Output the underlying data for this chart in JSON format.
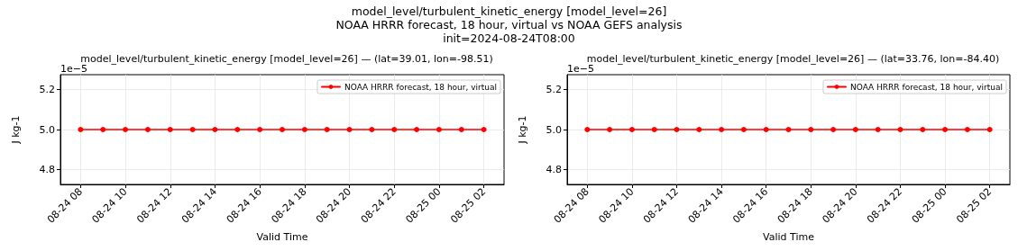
{
  "chart_data": [
    {
      "type": "line",
      "title": "model_level/turbulent_kinetic_energy [model_level=26] — (lat=39.01, lon=-98.51)",
      "xlabel": "Valid Time",
      "ylabel": "J kg-1",
      "annotations": [
        "model_level/turbulent_kinetic_energy [model_level=26]\nNOAA HRRR forecast, 18 hour, virtual vs NOAA GEFS analysis\ninit=2024-08-24T08:00",
        "1e−5"
      ],
      "x": [
        "2024-08-24T08:00",
        "2024-08-24T09:00",
        "2024-08-24T10:00",
        "2024-08-24T11:00",
        "2024-08-24T12:00",
        "2024-08-24T13:00",
        "2024-08-24T14:00",
        "2024-08-24T15:00",
        "2024-08-24T16:00",
        "2024-08-24T17:00",
        "2024-08-24T18:00",
        "2024-08-24T19:00",
        "2024-08-24T20:00",
        "2024-08-24T21:00",
        "2024-08-24T22:00",
        "2024-08-24T23:00",
        "2024-08-25T00:00",
        "2024-08-25T01:00",
        "2024-08-25T02:00"
      ],
      "series": [
        {
          "name": "NOAA HRRR forecast, 18 hour, virtual",
          "color": "#ff0000",
          "values": [
            5.0,
            5.0,
            5.0,
            5.0,
            5.0,
            5.0,
            5.0,
            5.0,
            5.0,
            5.0,
            5.0,
            5.0,
            5.0,
            5.0,
            5.0,
            5.0,
            5.0,
            5.0,
            5.0
          ]
        }
      ],
      "xlim": [
        "2024-08-24T07:06",
        "2024-08-25T02:54"
      ],
      "xticks": [
        {
          "value": "2024-08-24T08:00",
          "label": "08-24 08"
        },
        {
          "value": "2024-08-24T10:00",
          "label": "08-24 10"
        },
        {
          "value": "2024-08-24T12:00",
          "label": "08-24 12"
        },
        {
          "value": "2024-08-24T14:00",
          "label": "08-24 14"
        },
        {
          "value": "2024-08-24T16:00",
          "label": "08-24 16"
        },
        {
          "value": "2024-08-24T18:00",
          "label": "08-24 18"
        },
        {
          "value": "2024-08-24T20:00",
          "label": "08-24 20"
        },
        {
          "value": "2024-08-24T22:00",
          "label": "08-24 22"
        },
        {
          "value": "2024-08-25T00:00",
          "label": "08-25 00"
        },
        {
          "value": "2024-08-25T02:00",
          "label": "08-25 02"
        }
      ],
      "ylim": [
        4.725,
        5.275
      ],
      "yticks": [
        {
          "value": 4.8,
          "label": "4.8"
        },
        {
          "value": 5.0,
          "label": "5.0"
        },
        {
          "value": 5.2,
          "label": "5.2"
        }
      ],
      "grid": true,
      "legend": "top right",
      "marker": "circle",
      "line_style": "solid"
    },
    {
      "type": "line",
      "title": "model_level/turbulent_kinetic_energy [model_level=26] — (lat=33.76, lon=-84.40)",
      "xlabel": "Valid Time",
      "ylabel": "J kg-1",
      "annotations": [
        "1e−5"
      ],
      "x": [
        "2024-08-24T08:00",
        "2024-08-24T09:00",
        "2024-08-24T10:00",
        "2024-08-24T11:00",
        "2024-08-24T12:00",
        "2024-08-24T13:00",
        "2024-08-24T14:00",
        "2024-08-24T15:00",
        "2024-08-24T16:00",
        "2024-08-24T17:00",
        "2024-08-24T18:00",
        "2024-08-24T19:00",
        "2024-08-24T20:00",
        "2024-08-24T21:00",
        "2024-08-24T22:00",
        "2024-08-24T23:00",
        "2024-08-25T00:00",
        "2024-08-25T01:00",
        "2024-08-25T02:00"
      ],
      "series": [
        {
          "name": "NOAA HRRR forecast, 18 hour, virtual",
          "color": "#ff0000",
          "values": [
            5.0,
            5.0,
            5.0,
            5.0,
            5.0,
            5.0,
            5.0,
            5.0,
            5.0,
            5.0,
            5.0,
            5.0,
            5.0,
            5.0,
            5.0,
            5.0,
            5.0,
            5.0,
            5.0
          ]
        }
      ],
      "xlim": [
        "2024-08-24T07:06",
        "2024-08-25T02:54"
      ],
      "xticks": [
        {
          "value": "2024-08-24T08:00",
          "label": "08-24 08"
        },
        {
          "value": "2024-08-24T10:00",
          "label": "08-24 10"
        },
        {
          "value": "2024-08-24T12:00",
          "label": "08-24 12"
        },
        {
          "value": "2024-08-24T14:00",
          "label": "08-24 14"
        },
        {
          "value": "2024-08-24T16:00",
          "label": "08-24 16"
        },
        {
          "value": "2024-08-24T18:00",
          "label": "08-24 18"
        },
        {
          "value": "2024-08-24T20:00",
          "label": "08-24 20"
        },
        {
          "value": "2024-08-24T22:00",
          "label": "08-24 22"
        },
        {
          "value": "2024-08-25T00:00",
          "label": "08-25 00"
        },
        {
          "value": "2024-08-25T02:00",
          "label": "08-25 02"
        }
      ],
      "ylim": [
        4.725,
        5.275
      ],
      "yticks": [
        {
          "value": 4.8,
          "label": "4.8"
        },
        {
          "value": 5.0,
          "label": "5.0"
        },
        {
          "value": 5.2,
          "label": "5.2"
        }
      ],
      "grid": true,
      "legend": "top right",
      "marker": "circle",
      "line_style": "solid"
    }
  ]
}
